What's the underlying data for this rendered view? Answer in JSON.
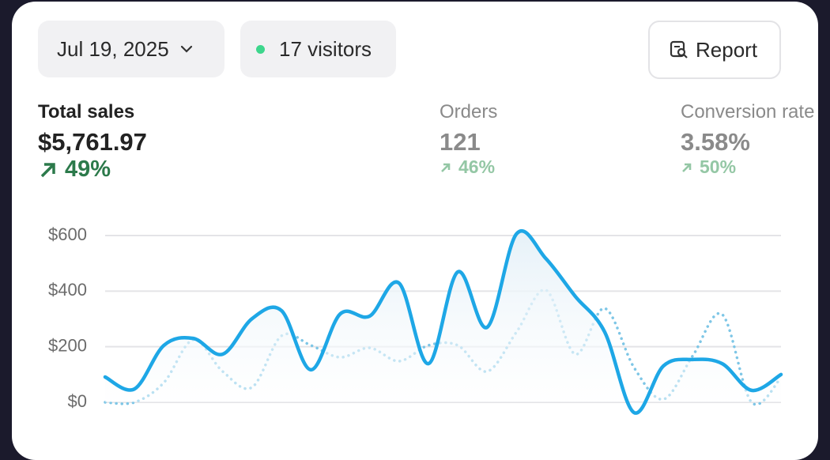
{
  "header": {
    "date": "Jul 19, 2025",
    "visitors": "17 visitors",
    "report": "Report"
  },
  "metrics": [
    {
      "label": "Total sales",
      "value": "$5,761.97",
      "change": "49%"
    },
    {
      "label": "Orders",
      "value": "121",
      "change": "46%"
    },
    {
      "label": "Conversion rate",
      "value": "3.58%",
      "change": "50%"
    }
  ],
  "chart_data": {
    "type": "line",
    "categories": [
      null,
      null,
      null,
      null,
      null,
      null,
      null,
      null,
      null,
      null,
      null,
      null,
      null,
      null,
      null,
      null,
      null,
      null,
      null,
      null,
      null,
      null,
      null,
      null
    ],
    "series": [
      {
        "color": "#1ea7e6",
        "style": "solid",
        "values": [
          91,
          48,
          205,
          230,
          173,
          301,
          330,
          117,
          318,
          310,
          429,
          139,
          469,
          270,
          606,
          517,
          381,
          253,
          -37,
          131,
          154,
          139,
          43,
          100
        ]
      },
      {
        "color": "#7ec6e6",
        "style": "dotted",
        "values": [
          0,
          0,
          71,
          225,
          111,
          54,
          239,
          205,
          162,
          196,
          148,
          205,
          205,
          111,
          253,
          404,
          173,
          338,
          125,
          11,
          168,
          316,
          0,
          88
        ]
      }
    ],
    "ylim": [
      0,
      600
    ],
    "yticks": [
      {
        "value": 0,
        "label": "$0"
      },
      {
        "value": 200,
        "label": "$200"
      },
      {
        "value": 400,
        "label": "$400"
      },
      {
        "value": 600,
        "label": "$600"
      }
    ],
    "grid": true
  }
}
